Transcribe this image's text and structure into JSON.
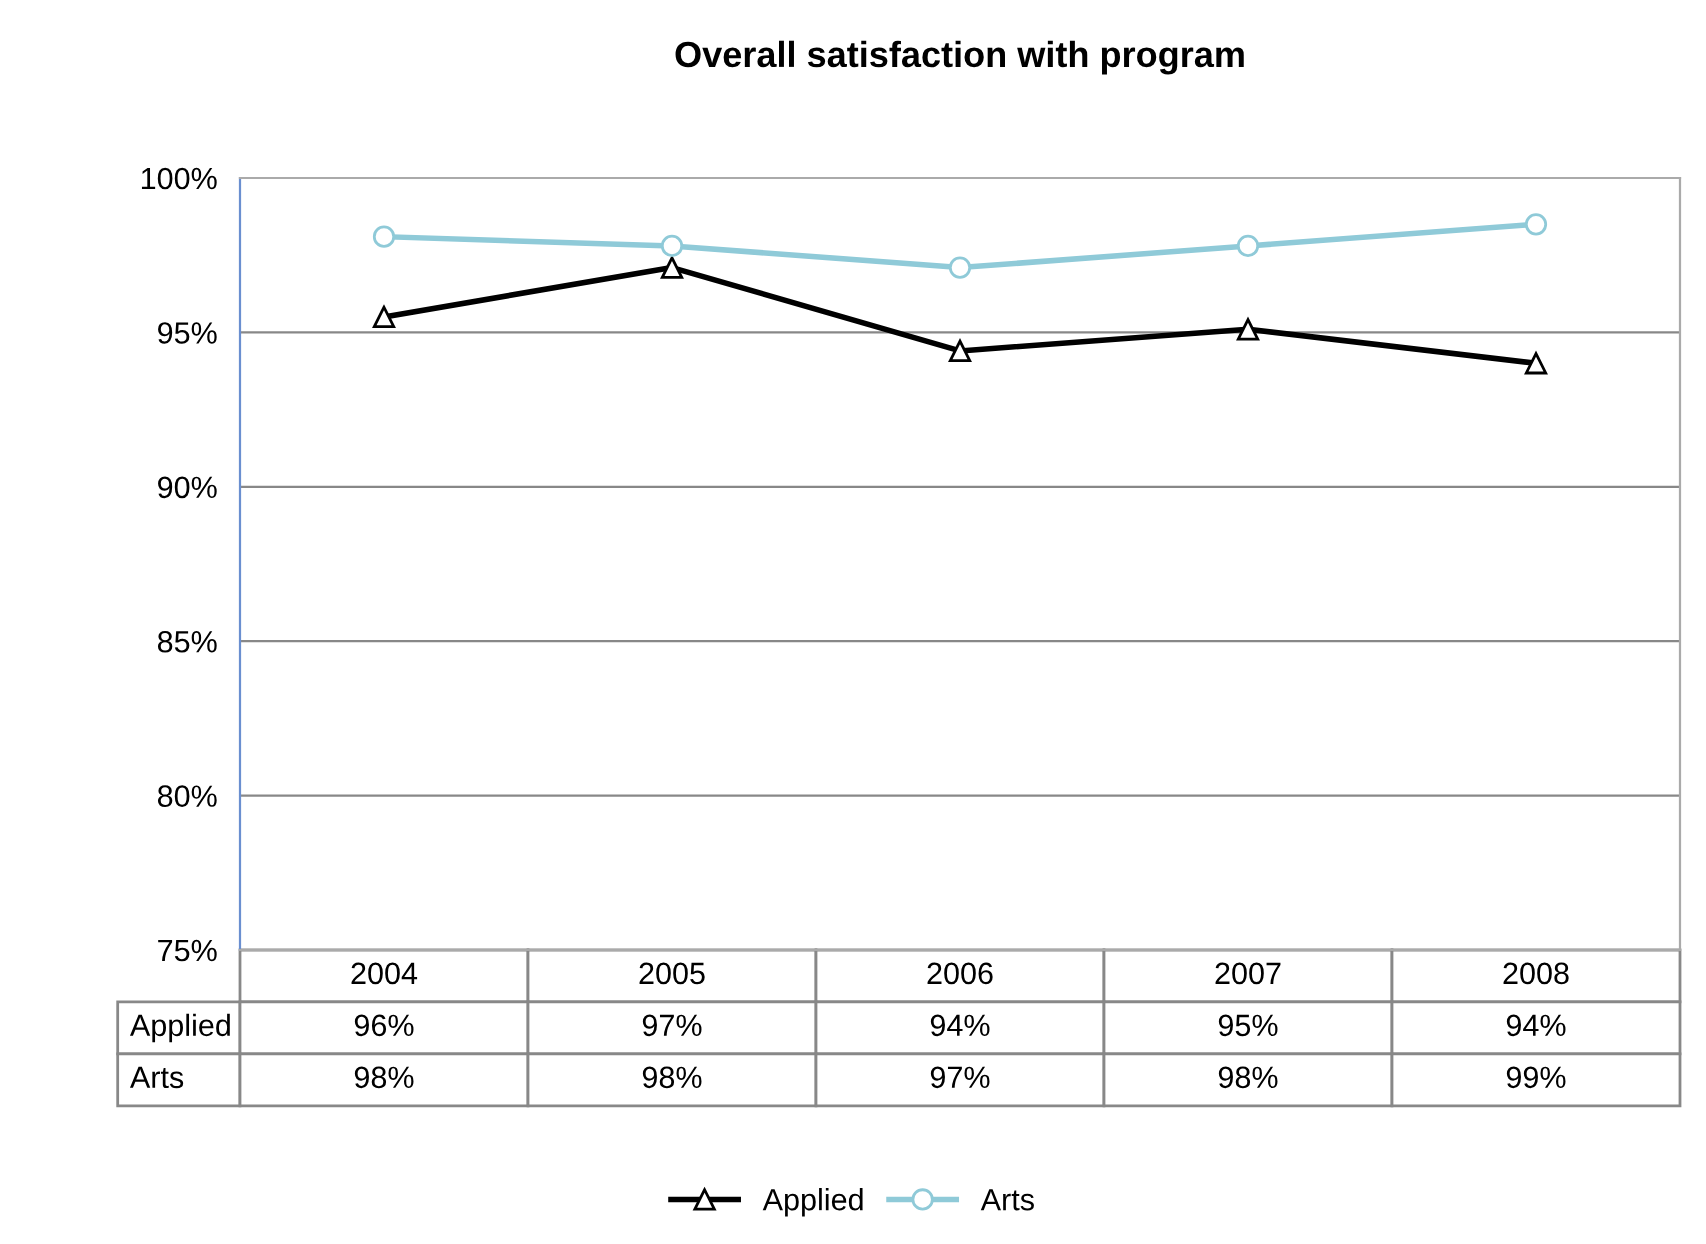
{
  "chart_data": {
    "type": "line",
    "title": "Overall satisfaction with program",
    "categories": [
      "2004",
      "2005",
      "2006",
      "2007",
      "2008"
    ],
    "series": [
      {
        "name": "Applied",
        "color": "#000000",
        "marker": "triangle",
        "values": [
          95.5,
          97.1,
          94.4,
          95.1,
          94.0
        ],
        "value_labels": [
          "96%",
          "97%",
          "94%",
          "95%",
          "94%"
        ]
      },
      {
        "name": "Arts",
        "color": "#8fcad8",
        "marker": "circle",
        "values": [
          98.1,
          97.8,
          97.1,
          97.8,
          98.5
        ],
        "value_labels": [
          "98%",
          "98%",
          "97%",
          "98%",
          "99%"
        ]
      }
    ],
    "ylim": [
      75,
      100
    ],
    "yticks": [
      {
        "value": 75,
        "label": "75%"
      },
      {
        "value": 80,
        "label": "80%"
      },
      {
        "value": 85,
        "label": "85%"
      },
      {
        "value": 90,
        "label": "90%"
      },
      {
        "value": 95,
        "label": "95%"
      },
      {
        "value": 100,
        "label": "100%"
      }
    ],
    "grid": "y",
    "legend": "bottom"
  }
}
